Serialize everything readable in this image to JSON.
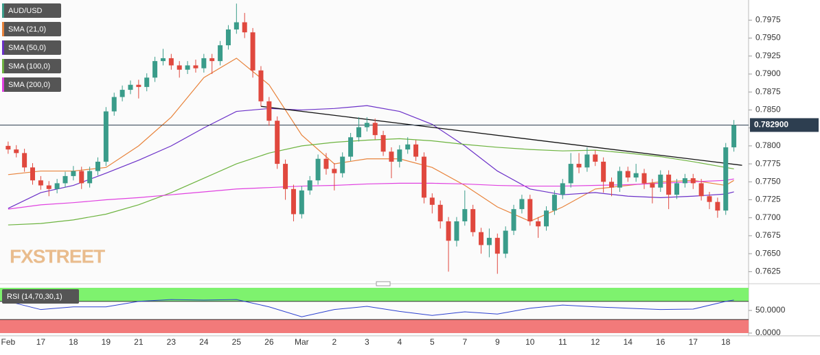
{
  "chart_data": [
    {
      "type": "candlestick",
      "categories": [
        "Feb",
        null,
        null,
        null,
        "17",
        null,
        null,
        null,
        "18",
        null,
        null,
        null,
        "19",
        null,
        null,
        null,
        "21",
        null,
        null,
        null,
        "23",
        null,
        null,
        null,
        "24",
        null,
        null,
        null,
        "25",
        null,
        null,
        null,
        "26",
        null,
        null,
        null,
        "Mar",
        null,
        null,
        null,
        "2",
        null,
        null,
        null,
        "3",
        null,
        null,
        null,
        "4",
        null,
        null,
        null,
        "5",
        null,
        null,
        null,
        "7",
        null,
        null,
        null,
        "9",
        null,
        null,
        null,
        "10",
        null,
        null,
        null,
        "11",
        null,
        null,
        null,
        "12",
        null,
        null,
        null,
        "14",
        null,
        null,
        null,
        "16",
        null,
        null,
        null,
        "17",
        null,
        null,
        null,
        "18",
        null
      ],
      "series": [
        {
          "name": "AUD/USD",
          "type": "candlestick",
          "color": "#3a9c8a",
          "down_color": "#e0483e",
          "open": [
            0.78,
            0.7795,
            0.779,
            0.777,
            0.7752,
            0.7745,
            0.774,
            0.7748,
            0.7758,
            0.7765,
            0.7748,
            0.7765,
            0.7778,
            0.7848,
            0.7868,
            0.7878,
            0.7885,
            0.7882,
            0.7895,
            0.7918,
            0.7922,
            0.7912,
            0.7906,
            0.7912,
            0.7908,
            0.7922,
            0.7918,
            0.794,
            0.7962,
            0.7972,
            0.7958,
            0.7905,
            0.7862,
            0.7835,
            0.7775,
            0.774,
            0.7705,
            0.7738,
            0.7752,
            0.7782,
            0.7768,
            0.7762,
            0.7785,
            0.7812,
            0.7826,
            0.7832,
            0.7815,
            0.7792,
            0.7778,
            0.7795,
            0.7802,
            0.7785,
            0.7728,
            0.7718,
            0.7695,
            0.7668,
            0.7695,
            0.7712,
            0.768,
            0.7662,
            0.7672,
            0.765,
            0.7682,
            0.7712,
            0.7726,
            0.7695,
            0.7688,
            0.771,
            0.7732,
            0.7748,
            0.7775,
            0.777,
            0.7788,
            0.7778,
            0.775,
            0.7742,
            0.7765,
            0.7756,
            0.7762,
            0.7748,
            0.7742,
            0.776,
            0.7732,
            0.7748,
            0.7755,
            0.7748,
            0.773,
            0.7722,
            0.771,
            0.7798
          ],
          "high": [
            0.7806,
            0.7801,
            0.7796,
            0.7776,
            0.7758,
            0.7751,
            0.7754,
            0.7764,
            0.7772,
            0.7771,
            0.7771,
            0.7784,
            0.7854,
            0.7874,
            0.7884,
            0.7891,
            0.7892,
            0.7901,
            0.7924,
            0.7935,
            0.7928,
            0.7918,
            0.7918,
            0.792,
            0.7928,
            0.7928,
            0.7946,
            0.7968,
            0.7998,
            0.7985,
            0.7964,
            0.7911,
            0.7868,
            0.7841,
            0.7781,
            0.7746,
            0.7744,
            0.7758,
            0.7788,
            0.779,
            0.7776,
            0.7791,
            0.7818,
            0.784,
            0.784,
            0.7838,
            0.7821,
            0.7798,
            0.7801,
            0.7812,
            0.7808,
            0.7791,
            0.7734,
            0.7724,
            0.7701,
            0.7701,
            0.7738,
            0.7718,
            0.7686,
            0.7685,
            0.7678,
            0.7688,
            0.7718,
            0.7732,
            0.7732,
            0.7701,
            0.7716,
            0.7738,
            0.7754,
            0.779,
            0.779,
            0.7798,
            0.7794,
            0.7784,
            0.7756,
            0.7771,
            0.7771,
            0.7775,
            0.7768,
            0.7754,
            0.7766,
            0.7766,
            0.7754,
            0.7761,
            0.7761,
            0.7754,
            0.7736,
            0.7728,
            0.7804,
            0.7836
          ],
          "low": [
            0.7789,
            0.7784,
            0.7764,
            0.7746,
            0.7739,
            0.773,
            0.7734,
            0.7742,
            0.7752,
            0.774,
            0.7742,
            0.7759,
            0.7772,
            0.7842,
            0.7862,
            0.7872,
            0.7866,
            0.7876,
            0.7889,
            0.7912,
            0.7906,
            0.7895,
            0.79,
            0.7902,
            0.7902,
            0.79,
            0.7912,
            0.7934,
            0.7956,
            0.795,
            0.7895,
            0.7855,
            0.7828,
            0.7768,
            0.7725,
            0.7695,
            0.7699,
            0.7732,
            0.7746,
            0.776,
            0.7738,
            0.7756,
            0.7779,
            0.7806,
            0.782,
            0.7809,
            0.7786,
            0.7755,
            0.777,
            0.7789,
            0.7779,
            0.772,
            0.7706,
            0.7685,
            0.7625,
            0.766,
            0.7689,
            0.7674,
            0.765,
            0.7645,
            0.7622,
            0.7644,
            0.7676,
            0.7706,
            0.7689,
            0.7672,
            0.7682,
            0.7704,
            0.7726,
            0.7742,
            0.7762,
            0.7764,
            0.7772,
            0.7735,
            0.773,
            0.7736,
            0.775,
            0.775,
            0.774,
            0.772,
            0.7736,
            0.7712,
            0.7726,
            0.7742,
            0.774,
            0.7724,
            0.7712,
            0.77,
            0.7704,
            0.7792
          ],
          "close": [
            0.7795,
            0.779,
            0.777,
            0.7752,
            0.7745,
            0.774,
            0.7748,
            0.7758,
            0.7765,
            0.7748,
            0.7765,
            0.7778,
            0.7848,
            0.7868,
            0.7878,
            0.7885,
            0.7882,
            0.7895,
            0.7918,
            0.7922,
            0.7912,
            0.7906,
            0.7912,
            0.7908,
            0.7922,
            0.7918,
            0.794,
            0.7962,
            0.7972,
            0.7958,
            0.7905,
            0.7862,
            0.7835,
            0.7775,
            0.774,
            0.7705,
            0.7738,
            0.7752,
            0.7782,
            0.7768,
            0.7762,
            0.7785,
            0.7812,
            0.7826,
            0.7832,
            0.7815,
            0.7792,
            0.7778,
            0.7795,
            0.7802,
            0.7785,
            0.7728,
            0.7718,
            0.7695,
            0.7668,
            0.7695,
            0.7712,
            0.768,
            0.7662,
            0.7672,
            0.765,
            0.7682,
            0.7712,
            0.7726,
            0.7695,
            0.7688,
            0.771,
            0.7732,
            0.7748,
            0.7775,
            0.777,
            0.7788,
            0.7778,
            0.775,
            0.7742,
            0.7765,
            0.7756,
            0.7762,
            0.7748,
            0.7742,
            0.776,
            0.7732,
            0.7748,
            0.7755,
            0.7748,
            0.773,
            0.7722,
            0.771,
            0.7798,
            0.7829
          ]
        },
        {
          "name": "SMA (21,0)",
          "type": "line",
          "color": "#e8823a",
          "x": [
            0,
            4,
            8,
            12,
            16,
            20,
            24,
            28,
            32,
            36,
            40,
            44,
            48,
            52,
            56,
            60,
            64,
            68,
            72,
            76,
            80,
            84,
            88,
            89
          ],
          "values": [
            0.776,
            0.7765,
            0.7765,
            0.777,
            0.78,
            0.784,
            0.7895,
            0.7922,
            0.7885,
            0.7815,
            0.7775,
            0.7782,
            0.7782,
            0.777,
            0.7745,
            0.7715,
            0.7695,
            0.7715,
            0.774,
            0.7745,
            0.775,
            0.7752,
            0.7745,
            0.7752
          ]
        },
        {
          "name": "SMA (50,0)",
          "type": "line",
          "color": "#6a2fc8",
          "x": [
            0,
            4,
            8,
            12,
            16,
            20,
            24,
            28,
            32,
            36,
            40,
            44,
            48,
            52,
            56,
            60,
            64,
            68,
            72,
            76,
            80,
            84,
            88,
            89
          ],
          "values": [
            0.7713,
            0.7735,
            0.7745,
            0.7762,
            0.778,
            0.78,
            0.7825,
            0.7848,
            0.7852,
            0.785,
            0.7852,
            0.7856,
            0.7848,
            0.783,
            0.78,
            0.7765,
            0.774,
            0.7732,
            0.7735,
            0.773,
            0.7728,
            0.773,
            0.7733,
            0.7736
          ]
        },
        {
          "name": "SMA (100,0)",
          "type": "line",
          "color": "#6cb33e",
          "x": [
            0,
            4,
            8,
            12,
            16,
            20,
            24,
            28,
            32,
            36,
            40,
            44,
            48,
            52,
            56,
            60,
            64,
            68,
            72,
            76,
            80,
            84,
            88,
            89
          ],
          "values": [
            0.769,
            0.7692,
            0.7697,
            0.7705,
            0.7718,
            0.7735,
            0.7755,
            0.7775,
            0.779,
            0.78,
            0.7805,
            0.7808,
            0.781,
            0.7807,
            0.7802,
            0.7798,
            0.7795,
            0.7793,
            0.7794,
            0.779,
            0.7785,
            0.7778,
            0.777,
            0.7768
          ]
        },
        {
          "name": "SMA (200,0)",
          "type": "line",
          "color": "#e040e0",
          "x": [
            0,
            4,
            8,
            12,
            16,
            20,
            24,
            28,
            32,
            36,
            40,
            44,
            48,
            52,
            56,
            60,
            64,
            68,
            72,
            76,
            80,
            84,
            88,
            89
          ],
          "values": [
            0.7712,
            0.7718,
            0.7721,
            0.7725,
            0.7728,
            0.7732,
            0.7736,
            0.774,
            0.7742,
            0.7744,
            0.7745,
            0.7747,
            0.7748,
            0.7748,
            0.7747,
            0.7745,
            0.7744,
            0.7744,
            0.7745,
            0.7746,
            0.7748,
            0.775,
            0.7752,
            0.7754
          ]
        }
      ],
      "trendline": {
        "x": [
          31,
          90
        ],
        "values": [
          0.7855,
          0.7773
        ],
        "color": "#111111"
      },
      "last_price": {
        "value": 0.7829,
        "label": "0.782900"
      },
      "watermark": "FXSTREET",
      "xlim": [
        -1,
        90.8
      ],
      "ylim": [
        0.7612,
        0.8003
      ],
      "yticks": [
        {
          "value": 0.7625,
          "label": "0.7625"
        },
        {
          "value": 0.765,
          "label": "0.7650"
        },
        {
          "value": 0.7675,
          "label": "0.7675"
        },
        {
          "value": 0.77,
          "label": "0.7700"
        },
        {
          "value": 0.7725,
          "label": "0.7725"
        },
        {
          "value": 0.775,
          "label": "0.7750"
        },
        {
          "value": 0.7775,
          "label": "0.7775"
        },
        {
          "value": 0.78,
          "label": "0.7800"
        },
        {
          "value": 0.7825,
          "label": "0.7825"
        },
        {
          "value": 0.785,
          "label": "0.7850"
        },
        {
          "value": 0.7875,
          "label": "0.7875"
        },
        {
          "value": 0.79,
          "label": "0.7900"
        },
        {
          "value": 0.7925,
          "label": "0.7925"
        },
        {
          "value": 0.795,
          "label": "0.7950"
        },
        {
          "value": 0.7975,
          "label": "0.7975"
        }
      ]
    },
    {
      "type": "line",
      "title": "RSI (14,70,30,1)",
      "series": [
        {
          "color": "#2a3fd0",
          "x": [
            0,
            4,
            8,
            12,
            16,
            20,
            24,
            28,
            32,
            36,
            40,
            44,
            48,
            52,
            56,
            60,
            64,
            68,
            72,
            76,
            80,
            84,
            88,
            89
          ],
          "values": [
            70,
            52,
            58,
            58,
            70,
            74,
            73,
            74,
            58,
            36,
            52,
            59,
            48,
            39,
            47,
            42,
            55,
            62,
            58,
            55,
            52,
            53,
            70,
            73
          ]
        }
      ],
      "levels": {
        "upper": 70,
        "lower": 30,
        "upper_color": "#7ef26e",
        "lower_color": "#f27a7a"
      },
      "xlim": [
        -1,
        90.8
      ],
      "ylim": [
        0,
        100
      ],
      "yticks": [
        {
          "value": 50,
          "label": "50.0000"
        },
        {
          "value": 0,
          "label": "0.0000"
        }
      ]
    }
  ]
}
